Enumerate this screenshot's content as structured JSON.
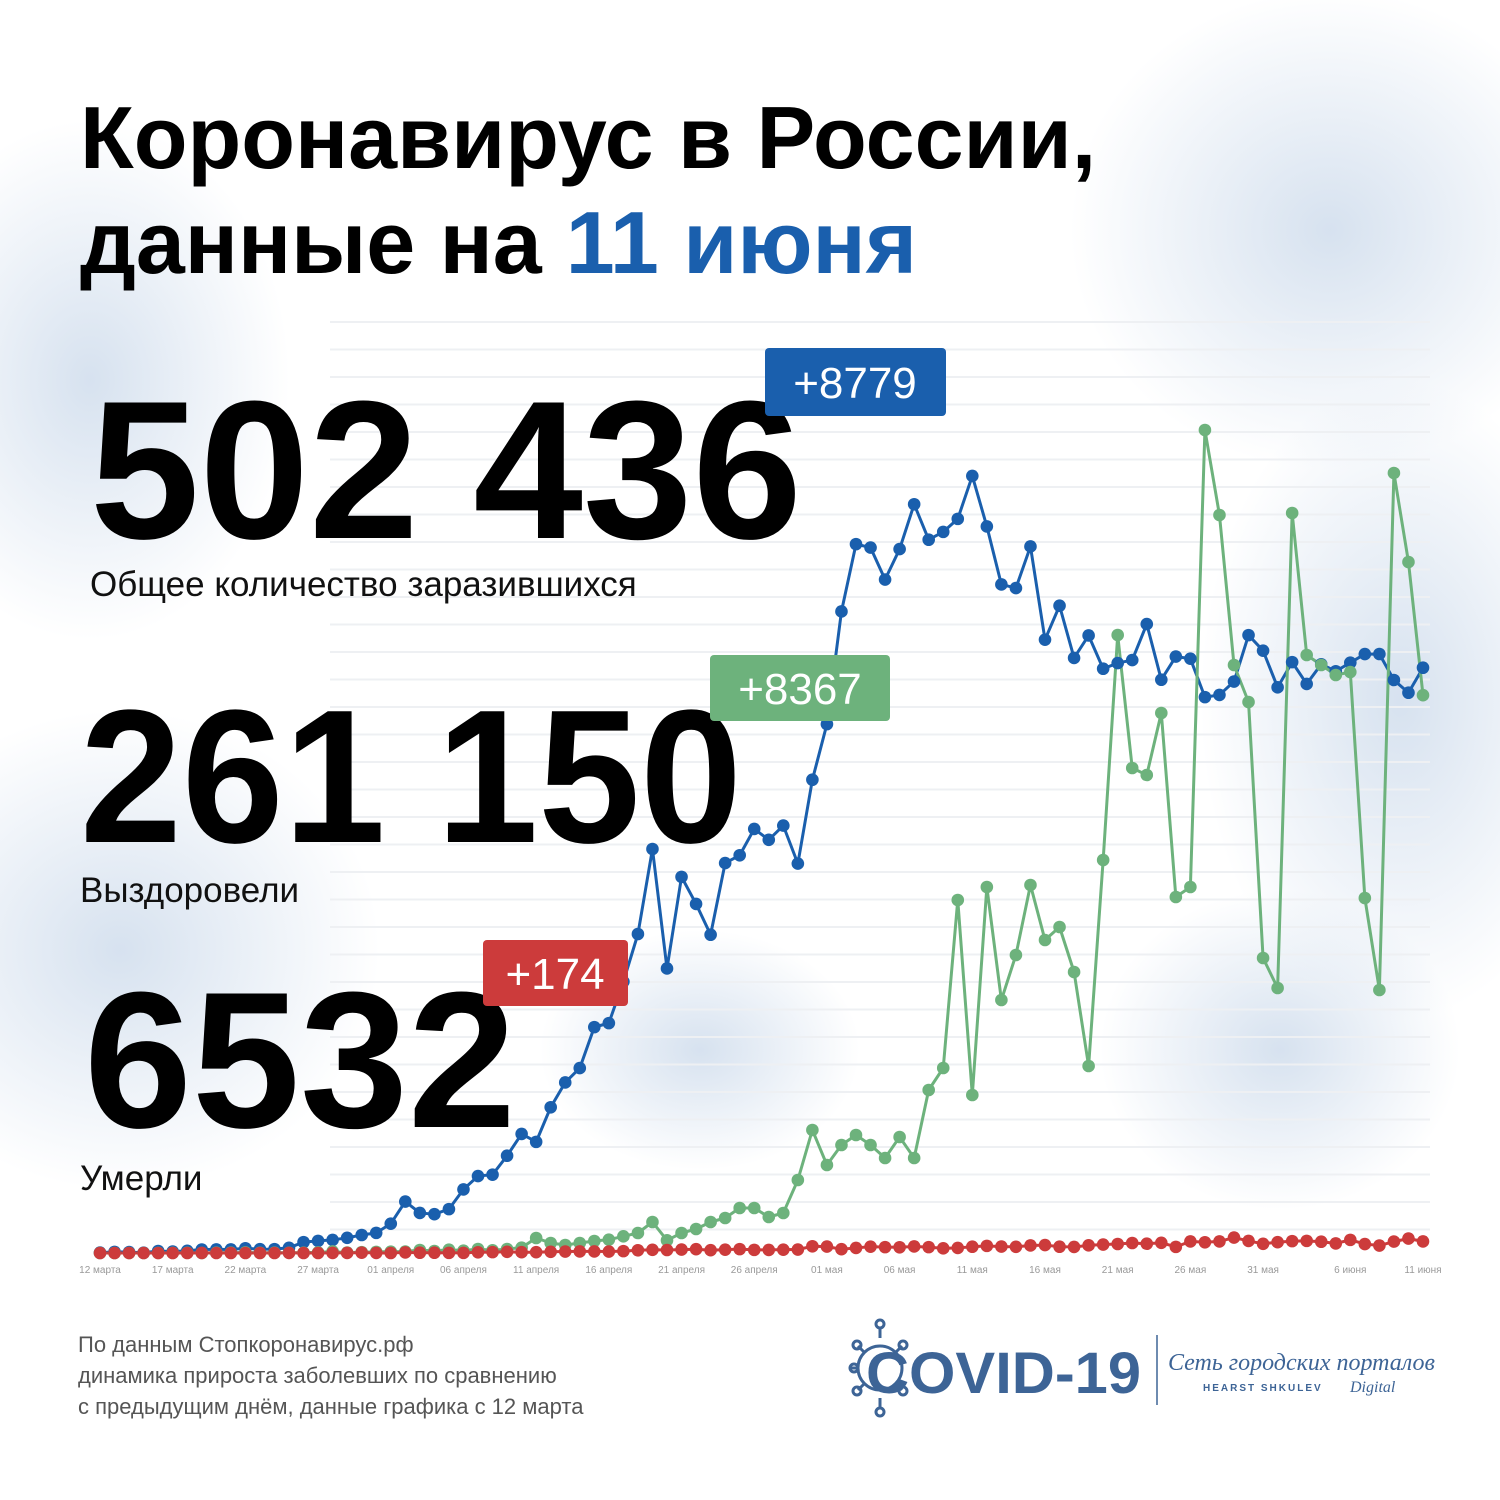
{
  "title": {
    "line1": "Коронавирус в России,",
    "line2": "данные на",
    "date": "11 июня"
  },
  "stats": [
    {
      "value": "502 436",
      "delta": "+8779",
      "label": "Общее количество заразившихся"
    },
    {
      "value": "261 150",
      "delta": "+8367",
      "label": "Выздоровели"
    },
    {
      "value": "6532",
      "delta": "+174",
      "label": "Умерли"
    }
  ],
  "chart_data": {
    "type": "line",
    "categories": [
      "12 марта",
      null,
      null,
      null,
      null,
      "17 марта",
      null,
      null,
      null,
      null,
      "22 марта",
      null,
      null,
      null,
      null,
      "27 марта",
      null,
      null,
      null,
      null,
      "01 апреля",
      null,
      null,
      null,
      null,
      "06 апреля",
      null,
      null,
      null,
      null,
      "11 апреля",
      null,
      null,
      null,
      null,
      "16 апреля",
      null,
      null,
      null,
      null,
      "21 апреля",
      null,
      null,
      null,
      null,
      "26 апреля",
      null,
      null,
      null,
      null,
      "01 мая",
      null,
      null,
      null,
      null,
      "06 мая",
      null,
      null,
      null,
      null,
      "11 мая",
      null,
      null,
      null,
      null,
      "16 мая",
      null,
      null,
      null,
      null,
      "21 мая",
      null,
      null,
      null,
      null,
      "26 мая",
      null,
      null,
      null,
      null,
      "31 мая",
      null,
      null,
      null,
      null,
      null,
      "6 июня",
      null,
      null,
      null,
      null,
      "11 июня"
    ],
    "series": [
      {
        "color": "#1a5fad",
        "values": [
          6,
          17,
          14,
          4,
          30,
          21,
          33,
          52,
          54,
          53,
          71,
          57,
          58,
          78,
          163,
          182,
          196,
          228,
          270,
          302,
          440,
          771,
          601,
          582,
          658,
          954,
          1154,
          1175,
          1459,
          1786,
          1667,
          2186,
          2558,
          2774,
          3388,
          3448,
          4070,
          4785,
          6060,
          4268,
          5642,
          5236,
          4774,
          5849,
          5966,
          6361,
          6198,
          6411,
          5841,
          7099,
          7933,
          9623,
          10633,
          10581,
          10102,
          10559,
          11231,
          10699,
          10817,
          11012,
          11656,
          10899,
          10028,
          9974,
          10598,
          9200,
          9709,
          8926,
          9263,
          8764,
          8849,
          8894,
          9434,
          8599,
          8946,
          8915,
          8338,
          8371,
          8572,
          9268,
          9035,
          8485,
          8863,
          8536,
          8831,
          8726,
          8855,
          8984,
          8985,
          8595,
          8404,
          8779
        ]
      },
      {
        "color": "#6db27c",
        "values": [
          0,
          0,
          0,
          0,
          1,
          2,
          3,
          0,
          5,
          5,
          8,
          3,
          5,
          3,
          5,
          9,
          23,
          6,
          13,
          17,
          20,
          22,
          45,
          30,
          50,
          35,
          60,
          40,
          60,
          80,
          225,
          150,
          120,
          150,
          180,
          200,
          250,
          300,
          465,
          190,
          300,
          360,
          465,
          525,
          675,
          675,
          540,
          600,
          1095,
          1845,
          1320,
          1620,
          1770,
          1620,
          1425,
          1740,
          1425,
          2445,
          2775,
          5295,
          2370,
          5490,
          3795,
          4470,
          5520,
          4695,
          4890,
          4215,
          2805,
          5895,
          9270,
          7275,
          7170,
          8100,
          5340,
          5490,
          12345,
          11070,
          8820,
          8265,
          4425,
          3975,
          11100,
          8970,
          8820,
          8670,
          8715,
          5325,
          3945,
          11700,
          10365,
          8367
        ]
      },
      {
        "color": "#cc3b3b",
        "values": [
          0,
          0,
          0,
          0,
          0,
          0,
          0,
          1,
          0,
          0,
          0,
          0,
          0,
          1,
          0,
          0,
          1,
          1,
          5,
          1,
          0,
          9,
          4,
          4,
          2,
          2,
          11,
          13,
          18,
          12,
          12,
          18,
          22,
          24,
          24,
          22,
          28,
          41,
          48,
          45,
          51,
          57,
          42,
          50,
          58,
          47,
          46,
          50,
          52,
          101,
          96,
          57,
          76,
          95,
          88,
          86,
          98,
          88,
          70,
          76,
          94,
          107,
          96,
          93,
          113,
          119,
          94,
          91,
          115,
          127,
          135,
          150,
          139,
          153,
          92,
          174,
          161,
          174,
          232,
          181,
          138,
          162,
          178,
          182,
          169,
          144,
          197,
          134,
          112,
          171,
          216,
          174
        ]
      }
    ],
    "ylim": [
      0,
      12600
    ]
  },
  "footer": {
    "lines": [
      "По данным Стопкоронавирус.рф",
      "динамика прироста заболевших по сравнению",
      "с предыдущим днём, данные графика с 12 марта"
    ]
  },
  "logo": {
    "name": "COVID-19",
    "network": "Сеть городских порталов",
    "brand": "HEARST SHKULEV",
    "suffix": "Digital"
  }
}
